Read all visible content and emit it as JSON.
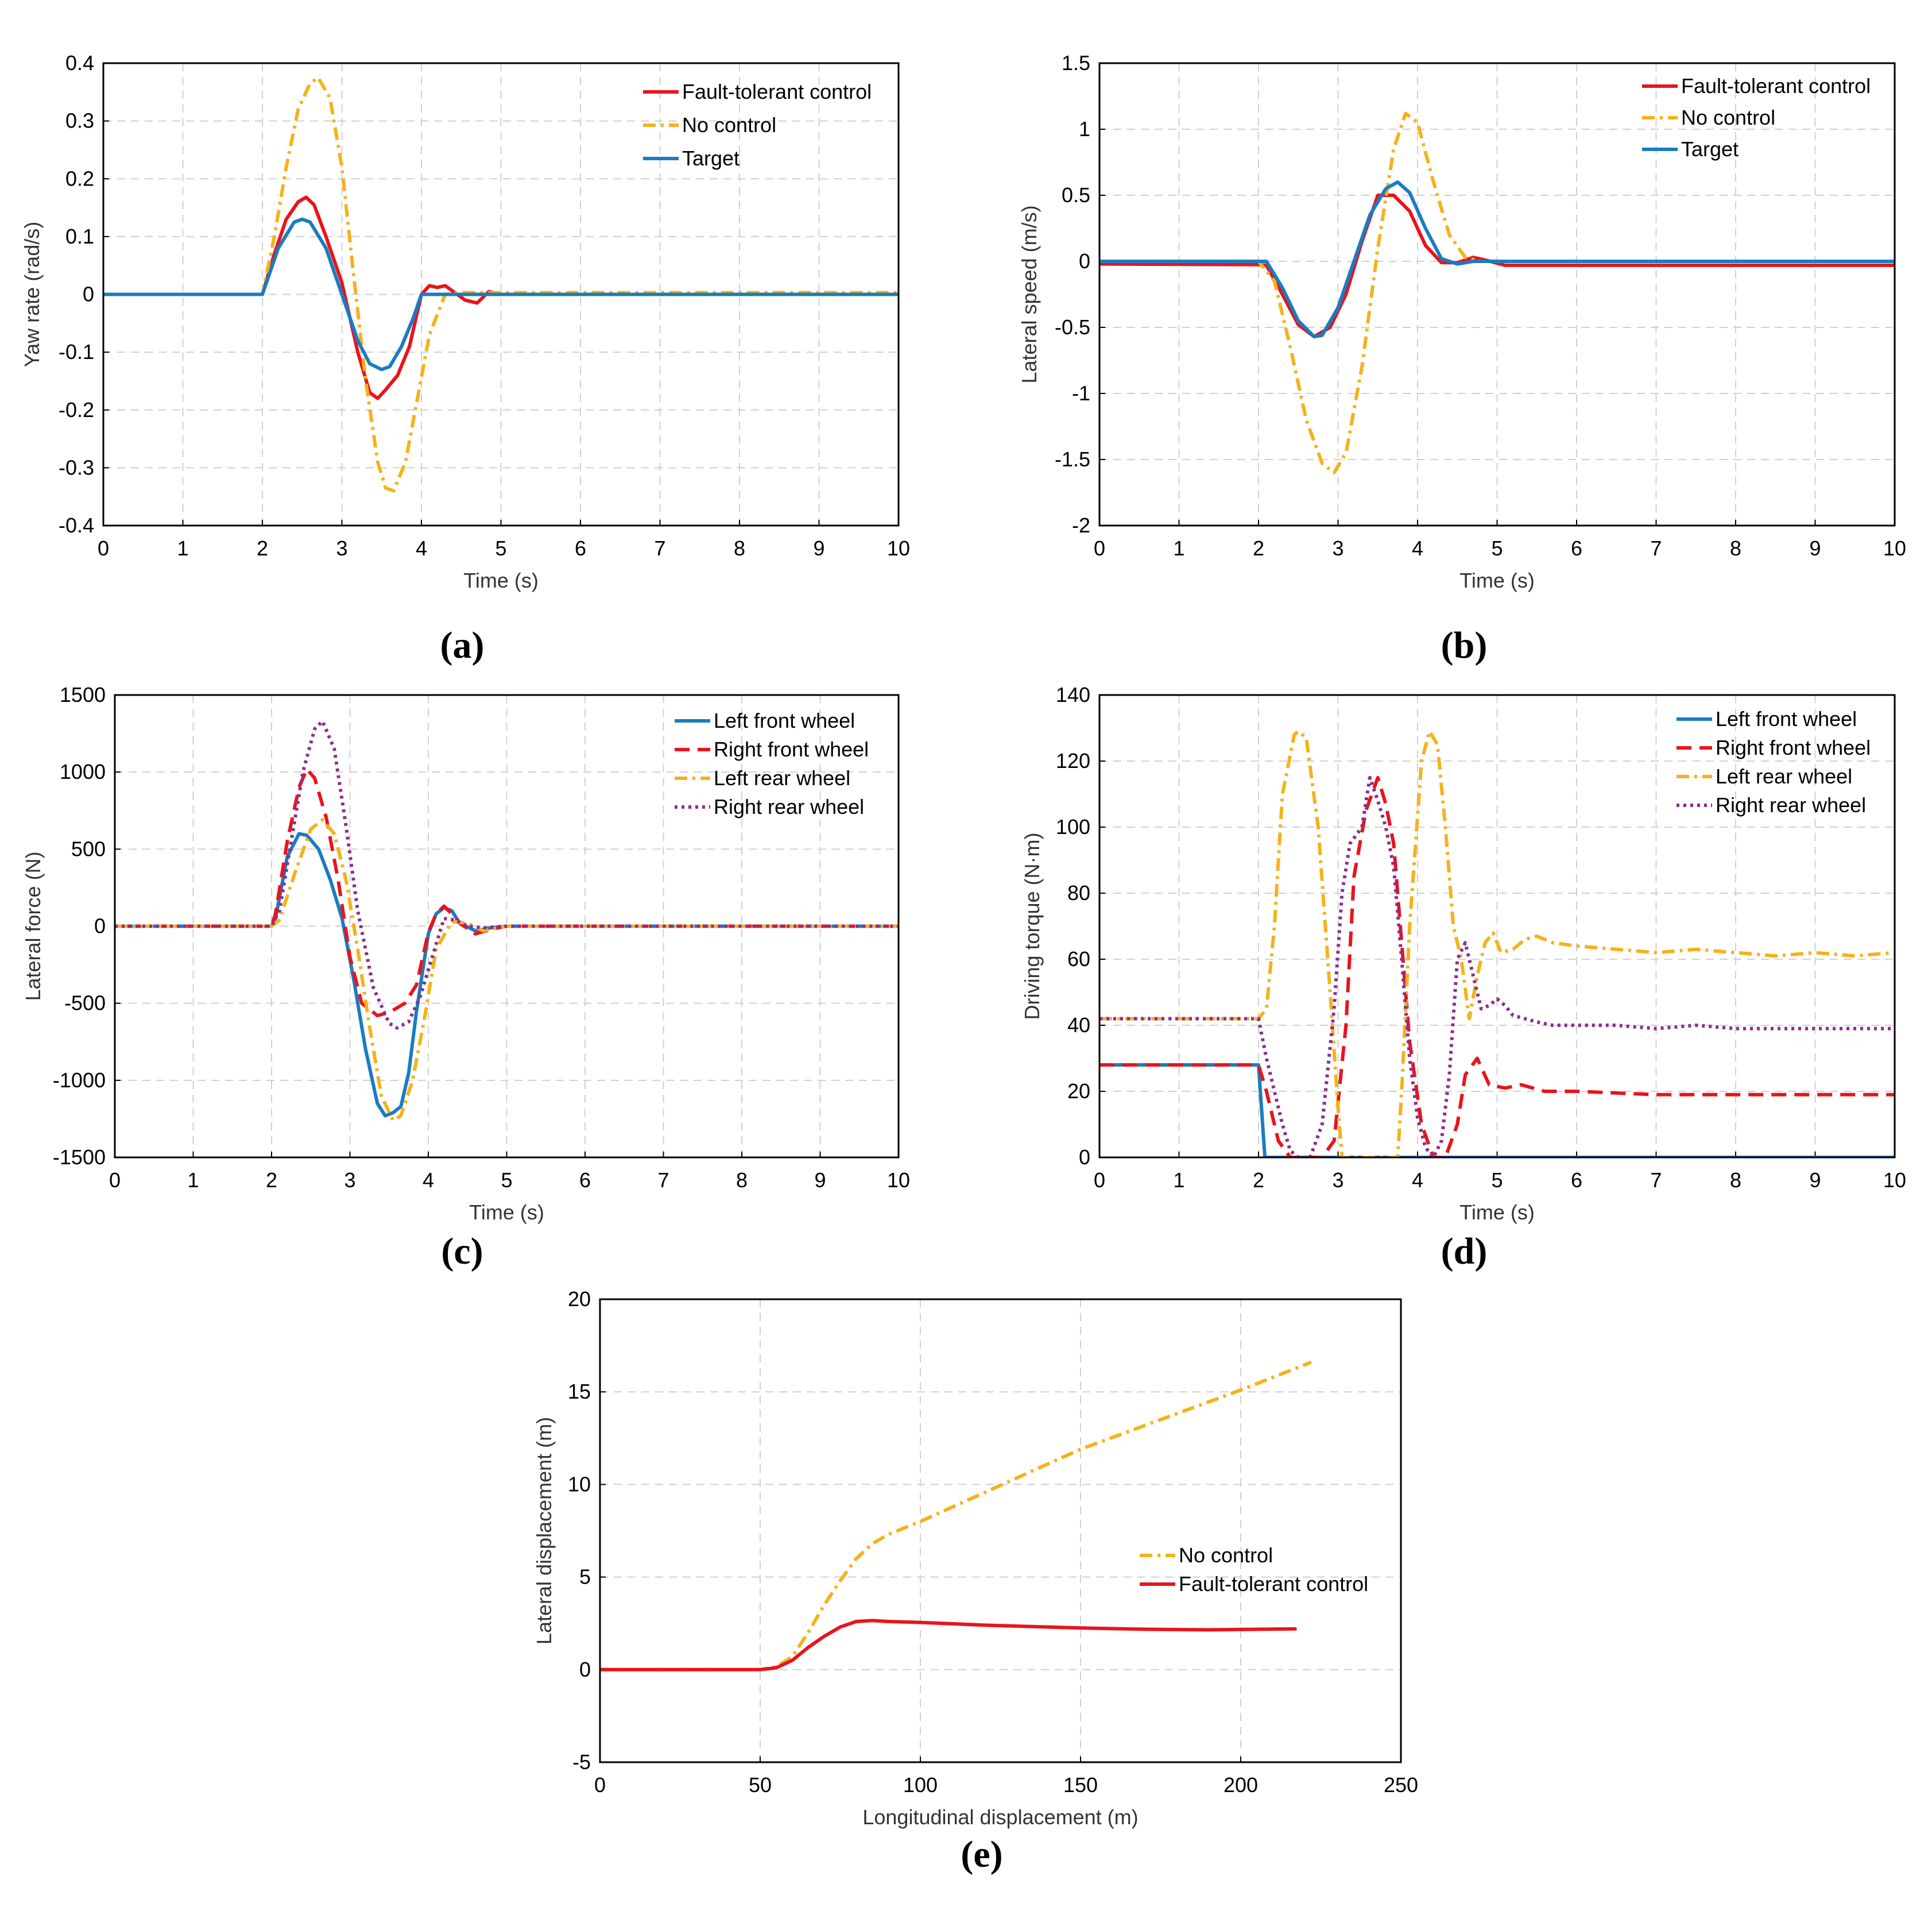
{
  "colors": {
    "red": "#e8141c",
    "orange": "#f5b21b",
    "blue": "#1a7cc1",
    "purple": "#8b2e8e",
    "grid": "#d0d0d0",
    "axis": "#000000"
  },
  "captions": [
    "(a)",
    "(b)",
    "(c)",
    "(d)",
    "(e)"
  ],
  "chart_data": [
    {
      "id": "a",
      "type": "line",
      "xlabel": "Time (s)",
      "ylabel": "Yaw rate (rad/s)",
      "xlim": [
        0,
        10
      ],
      "ylim": [
        -0.4,
        0.4
      ],
      "xticks": [
        "0",
        "1",
        "2",
        "3",
        "4",
        "5",
        "6",
        "7",
        "8",
        "9",
        "10"
      ],
      "yticks": [
        "-0.4",
        "-0.3",
        "-0.2",
        "-0.1",
        "0",
        "0.1",
        "0.2",
        "0.3",
        "0.4"
      ],
      "legend": [
        "Fault-tolerant control",
        "No control",
        "Target"
      ],
      "series": [
        {
          "name": "Fault-tolerant control",
          "color": "red",
          "dash": "solid",
          "x": [
            0,
            2,
            2.15,
            2.3,
            2.45,
            2.55,
            2.65,
            2.8,
            3,
            3.2,
            3.35,
            3.45,
            3.55,
            3.7,
            3.85,
            4,
            4.1,
            4.2,
            4.3,
            4.45,
            4.55,
            4.7,
            4.85,
            5,
            10
          ],
          "y": [
            0,
            0,
            0.07,
            0.13,
            0.16,
            0.168,
            0.155,
            0.1,
            0.02,
            -0.1,
            -0.17,
            -0.18,
            -0.165,
            -0.14,
            -0.09,
            0.0,
            0.015,
            0.012,
            0.015,
            0.0,
            -0.01,
            -0.015,
            0.005,
            0,
            0
          ]
        },
        {
          "name": "No control",
          "color": "orange",
          "dash": "dashdot",
          "x": [
            0,
            2,
            2.15,
            2.3,
            2.45,
            2.6,
            2.7,
            2.85,
            3,
            3.15,
            3.3,
            3.45,
            3.55,
            3.65,
            3.8,
            3.95,
            4.1,
            4.3,
            4.5,
            10
          ],
          "y": [
            0,
            0,
            0.1,
            0.22,
            0.32,
            0.365,
            0.375,
            0.34,
            0.22,
            0.03,
            -0.15,
            -0.29,
            -0.335,
            -0.34,
            -0.29,
            -0.18,
            -0.07,
            0,
            0.003,
            0.003
          ]
        },
        {
          "name": "Target",
          "color": "blue",
          "dash": "solid",
          "x": [
            0,
            2,
            2.2,
            2.4,
            2.5,
            2.6,
            2.8,
            3,
            3.2,
            3.35,
            3.5,
            3.6,
            3.75,
            3.9,
            4,
            10
          ],
          "y": [
            0,
            0,
            0.08,
            0.125,
            0.13,
            0.125,
            0.08,
            0.0,
            -0.08,
            -0.12,
            -0.13,
            -0.125,
            -0.09,
            -0.04,
            0,
            0
          ]
        }
      ]
    },
    {
      "id": "b",
      "type": "line",
      "xlabel": "Time (s)",
      "ylabel": "Lateral speed (m/s)",
      "xlim": [
        0,
        10
      ],
      "ylim": [
        -2,
        1.5
      ],
      "xticks": [
        "0",
        "1",
        "2",
        "3",
        "4",
        "5",
        "6",
        "7",
        "8",
        "9",
        "10"
      ],
      "yticks": [
        "-2",
        "-1.5",
        "-1",
        "-0.5",
        "0",
        "0.5",
        "1",
        "1.5"
      ],
      "legend": [
        "Fault-tolerant control",
        "No control",
        "Target"
      ],
      "series": [
        {
          "name": "Fault-tolerant control",
          "color": "red",
          "dash": "solid",
          "x": [
            0,
            2,
            2.1,
            2.3,
            2.5,
            2.7,
            2.9,
            3.1,
            3.3,
            3.5,
            3.7,
            3.9,
            4.1,
            4.3,
            4.5,
            4.7,
            4.85,
            5.1,
            10
          ],
          "y": [
            -0.02,
            -0.025,
            -0.03,
            -0.25,
            -0.48,
            -0.57,
            -0.5,
            -0.25,
            0.15,
            0.5,
            0.5,
            0.38,
            0.12,
            -0.01,
            -0.01,
            0.03,
            0.01,
            -0.03,
            -0.03
          ]
        },
        {
          "name": "No control",
          "color": "orange",
          "dash": "dashdot",
          "x": [
            0,
            2,
            2.2,
            2.4,
            2.6,
            2.8,
            2.95,
            3.1,
            3.3,
            3.5,
            3.7,
            3.85,
            4,
            4.2,
            4.4,
            4.6,
            4.8,
            5,
            10
          ],
          "y": [
            0,
            0,
            -0.15,
            -0.65,
            -1.2,
            -1.53,
            -1.6,
            -1.45,
            -0.8,
            0.1,
            0.85,
            1.12,
            1.05,
            0.6,
            0.2,
            0.03,
            0,
            0,
            0
          ]
        },
        {
          "name": "Target",
          "color": "blue",
          "dash": "solid",
          "x": [
            0,
            2.1,
            2.3,
            2.5,
            2.7,
            2.8,
            3,
            3.2,
            3.4,
            3.6,
            3.75,
            3.9,
            4.1,
            4.3,
            4.5,
            4.7,
            5,
            10
          ],
          "y": [
            0,
            0,
            -0.2,
            -0.45,
            -0.57,
            -0.56,
            -0.35,
            0,
            0.35,
            0.55,
            0.6,
            0.52,
            0.25,
            0.02,
            -0.02,
            0,
            0,
            0
          ]
        }
      ]
    },
    {
      "id": "c",
      "type": "line",
      "xlabel": "Time (s)",
      "ylabel": "Lateral force (N)",
      "xlim": [
        0,
        10
      ],
      "ylim": [
        -1500,
        1500
      ],
      "xticks": [
        "0",
        "1",
        "2",
        "3",
        "4",
        "5",
        "6",
        "7",
        "8",
        "9",
        "10"
      ],
      "yticks": [
        "-1500",
        "-1000",
        "-500",
        "0",
        "500",
        "1000",
        "1500"
      ],
      "legend": [
        "Left front wheel",
        "Right front wheel",
        "Left rear wheel",
        "Right rear wheel"
      ],
      "series": [
        {
          "name": "Left front wheel",
          "color": "blue",
          "dash": "solid",
          "x": [
            0,
            2,
            2.05,
            2.2,
            2.35,
            2.45,
            2.6,
            2.75,
            2.9,
            3.05,
            3.2,
            3.35,
            3.45,
            3.55,
            3.65,
            3.75,
            3.85,
            4,
            4.1,
            4.2,
            4.3,
            4.4,
            4.6,
            4.8,
            5,
            10
          ],
          "y": [
            0,
            0,
            50,
            450,
            600,
            590,
            500,
            300,
            50,
            -350,
            -800,
            -1150,
            -1230,
            -1210,
            -1170,
            -950,
            -550,
            -50,
            80,
            120,
            100,
            20,
            -30,
            -10,
            0,
            0
          ]
        },
        {
          "name": "Right front wheel",
          "color": "red",
          "dash": "dashed",
          "x": [
            0,
            2,
            2.05,
            2.2,
            2.35,
            2.45,
            2.55,
            2.7,
            2.85,
            3,
            3.15,
            3.35,
            3.5,
            3.7,
            3.85,
            4,
            4.1,
            4.2,
            4.3,
            4.4,
            4.6,
            4.8,
            5,
            10
          ],
          "y": [
            0,
            0,
            80,
            550,
            900,
            1020,
            960,
            700,
            300,
            -200,
            -500,
            -580,
            -560,
            -500,
            -380,
            -40,
            80,
            130,
            80,
            20,
            -50,
            -20,
            0,
            0
          ]
        },
        {
          "name": "Left rear wheel",
          "color": "orange",
          "dash": "dashdot",
          "x": [
            0,
            2,
            2.1,
            2.3,
            2.5,
            2.65,
            2.8,
            2.95,
            3.1,
            3.25,
            3.4,
            3.55,
            3.65,
            3.8,
            3.95,
            4.1,
            4.3,
            4.5,
            4.7,
            5,
            10
          ],
          "y": [
            0,
            0,
            40,
            350,
            630,
            690,
            600,
            300,
            -150,
            -650,
            -1100,
            -1260,
            -1230,
            -1000,
            -600,
            -150,
            30,
            20,
            -30,
            0,
            0
          ]
        },
        {
          "name": "Right rear wheel",
          "color": "purple",
          "dash": "dotted",
          "x": [
            0,
            2,
            2.1,
            2.25,
            2.4,
            2.55,
            2.65,
            2.8,
            2.95,
            3.1,
            3.3,
            3.5,
            3.6,
            3.75,
            3.9,
            4.05,
            4.2,
            4.35,
            4.5,
            4.7,
            5,
            10
          ],
          "y": [
            0,
            0,
            100,
            550,
            1000,
            1280,
            1330,
            1150,
            650,
            100,
            -400,
            -630,
            -660,
            -620,
            -450,
            -200,
            50,
            40,
            0,
            -10,
            0,
            0
          ]
        }
      ]
    },
    {
      "id": "d",
      "type": "line",
      "xlabel": "Time (s)",
      "ylabel": "Driving torque (N·m)",
      "xlim": [
        0,
        10
      ],
      "ylim": [
        0,
        140
      ],
      "xticks": [
        "0",
        "1",
        "2",
        "3",
        "4",
        "5",
        "6",
        "7",
        "8",
        "9",
        "10"
      ],
      "yticks": [
        "0",
        "20",
        "40",
        "60",
        "80",
        "100",
        "120",
        "140"
      ],
      "legend": [
        "Left front wheel",
        "Right front wheel",
        "Left rear wheel",
        "Right rear wheel"
      ],
      "series": [
        {
          "name": "Left front wheel",
          "color": "blue",
          "dash": "solid",
          "x": [
            0,
            2,
            2.08,
            10
          ],
          "y": [
            28,
            28,
            0,
            0
          ]
        },
        {
          "name": "Right front wheel",
          "color": "red",
          "dash": "dashed",
          "x": [
            0,
            2,
            2.1,
            2.25,
            2.4,
            2.8,
            2.95,
            3.1,
            3.2,
            3.35,
            3.5,
            3.6,
            3.7,
            3.8,
            3.9,
            4.05,
            4.2,
            4.35,
            4.5,
            4.6,
            4.75,
            4.9,
            5.1,
            5.3,
            5.6,
            6,
            7,
            8,
            9,
            10
          ],
          "y": [
            28,
            28,
            20,
            5,
            0,
            0,
            5,
            40,
            85,
            105,
            115,
            107,
            95,
            65,
            35,
            10,
            0,
            0,
            10,
            25,
            30,
            22,
            21,
            22,
            20,
            20,
            19,
            19,
            19,
            19
          ]
        },
        {
          "name": "Left rear wheel",
          "color": "orange",
          "dash": "dashdot",
          "x": [
            0,
            2,
            2.1,
            2.2,
            2.3,
            2.45,
            2.5,
            2.6,
            2.75,
            2.9,
            3,
            3.05,
            3.75,
            3.8,
            3.9,
            4.05,
            4.15,
            4.25,
            4.35,
            4.45,
            4.55,
            4.65,
            4.75,
            4.85,
            4.95,
            5.05,
            5.2,
            5.35,
            5.5,
            5.7,
            6,
            6.5,
            7,
            7.5,
            8,
            8.5,
            9,
            9.5,
            10
          ],
          "y": [
            42,
            42,
            45,
            70,
            110,
            128,
            129,
            127,
            100,
            50,
            15,
            0,
            0,
            20,
            70,
            120,
            129,
            125,
            100,
            70,
            60,
            42,
            55,
            65,
            68,
            62,
            63,
            66,
            67,
            65,
            64,
            63,
            62,
            63,
            62,
            61,
            62,
            61,
            62
          ]
        },
        {
          "name": "Right rear wheel",
          "color": "purple",
          "dash": "dotted",
          "x": [
            0,
            2,
            2.1,
            2.2,
            2.3,
            2.4,
            2.5,
            2.65,
            2.8,
            2.95,
            3.05,
            3.15,
            3.3,
            3.4,
            3.5,
            3.6,
            3.7,
            3.8,
            3.9,
            4,
            4.1,
            4.2,
            4.3,
            4.4,
            4.5,
            4.6,
            4.7,
            4.8,
            4.9,
            5,
            5.1,
            5.2,
            5.35,
            5.5,
            5.7,
            6,
            6.5,
            7,
            7.5,
            8,
            8.5,
            9,
            9.5,
            10
          ],
          "y": [
            42,
            42,
            30,
            20,
            10,
            2,
            0,
            0,
            10,
            45,
            80,
            95,
            100,
            115,
            108,
            100,
            88,
            60,
            30,
            12,
            3,
            0,
            5,
            25,
            60,
            65,
            55,
            45,
            46,
            48,
            46,
            43,
            42,
            41,
            40,
            40,
            40,
            39,
            40,
            39,
            39,
            39,
            39,
            39
          ]
        }
      ]
    },
    {
      "id": "e",
      "type": "line",
      "xlabel": "Longitudinal displacement (m)",
      "ylabel": "Lateral displacement (m)",
      "xlim": [
        0,
        250
      ],
      "ylim": [
        -5,
        20
      ],
      "xticks": [
        "0",
        "50",
        "100",
        "150",
        "200",
        "250"
      ],
      "yticks": [
        "-5",
        "0",
        "5",
        "10",
        "15",
        "20"
      ],
      "legend": [
        "No control",
        "Fault-tolerant control"
      ],
      "series": [
        {
          "name": "No control",
          "color": "orange",
          "dash": "dashdot",
          "x": [
            0,
            50,
            55,
            60,
            65,
            70,
            75,
            80,
            85,
            90,
            100,
            150,
            200,
            222
          ],
          "y": [
            0,
            0,
            0.15,
            0.7,
            2,
            3.5,
            4.8,
            6,
            6.8,
            7.3,
            8,
            11.9,
            15.1,
            16.6
          ]
        },
        {
          "name": "Fault-tolerant control",
          "color": "red",
          "dash": "solid",
          "x": [
            0,
            50,
            55,
            60,
            65,
            70,
            75,
            80,
            85,
            90,
            100,
            120,
            150,
            170,
            190,
            217
          ],
          "y": [
            0,
            0,
            0.1,
            0.5,
            1.2,
            1.8,
            2.3,
            2.6,
            2.65,
            2.6,
            2.55,
            2.4,
            2.25,
            2.18,
            2.15,
            2.2
          ]
        }
      ]
    }
  ]
}
